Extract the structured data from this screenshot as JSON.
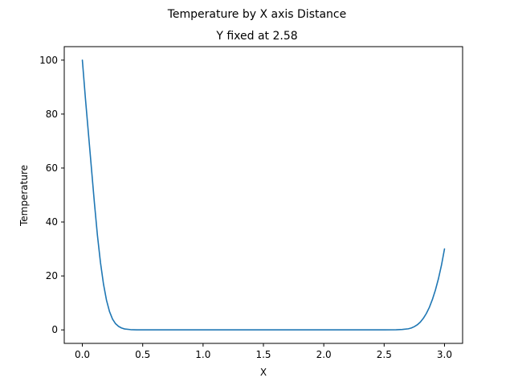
{
  "chart_data": {
    "type": "line",
    "suptitle": "Temperature by X axis Distance",
    "title": "Y fixed at 2.58",
    "xlabel": "X",
    "ylabel": "Temperature",
    "xlim": [
      -0.15,
      3.15
    ],
    "ylim": [
      -5,
      105
    ],
    "xticks": [
      0.0,
      0.5,
      1.0,
      1.5,
      2.0,
      2.5,
      3.0
    ],
    "xtick_labels": [
      "0.0",
      "0.5",
      "1.0",
      "1.5",
      "2.0",
      "2.5",
      "3.0"
    ],
    "yticks": [
      0,
      20,
      40,
      60,
      80,
      100
    ],
    "ytick_labels": [
      "0",
      "20",
      "40",
      "60",
      "80",
      "100"
    ],
    "grid": false,
    "legend": "none",
    "series": [
      {
        "color": "#1f77b4",
        "x": [
          0.0,
          0.025,
          0.05,
          0.075,
          0.1,
          0.125,
          0.15,
          0.175,
          0.2,
          0.225,
          0.25,
          0.275,
          0.3,
          0.325,
          0.35,
          0.4,
          0.45,
          0.5,
          1.0,
          1.5,
          2.0,
          2.5,
          2.6,
          2.65,
          2.7,
          2.725,
          2.75,
          2.775,
          2.8,
          2.825,
          2.85,
          2.875,
          2.9,
          2.925,
          2.95,
          2.975,
          3.0
        ],
        "y": [
          100.0,
          86.0,
          73.0,
          60.0,
          47.0,
          35.0,
          25.0,
          17.0,
          11.0,
          6.8,
          4.0,
          2.3,
          1.3,
          0.7,
          0.35,
          0.1,
          0.02,
          0.0,
          0.0,
          0.0,
          0.0,
          0.0,
          0.05,
          0.15,
          0.4,
          0.7,
          1.2,
          1.9,
          2.9,
          4.3,
          6.1,
          8.4,
          11.3,
          14.8,
          19.0,
          24.0,
          30.0
        ]
      }
    ]
  }
}
